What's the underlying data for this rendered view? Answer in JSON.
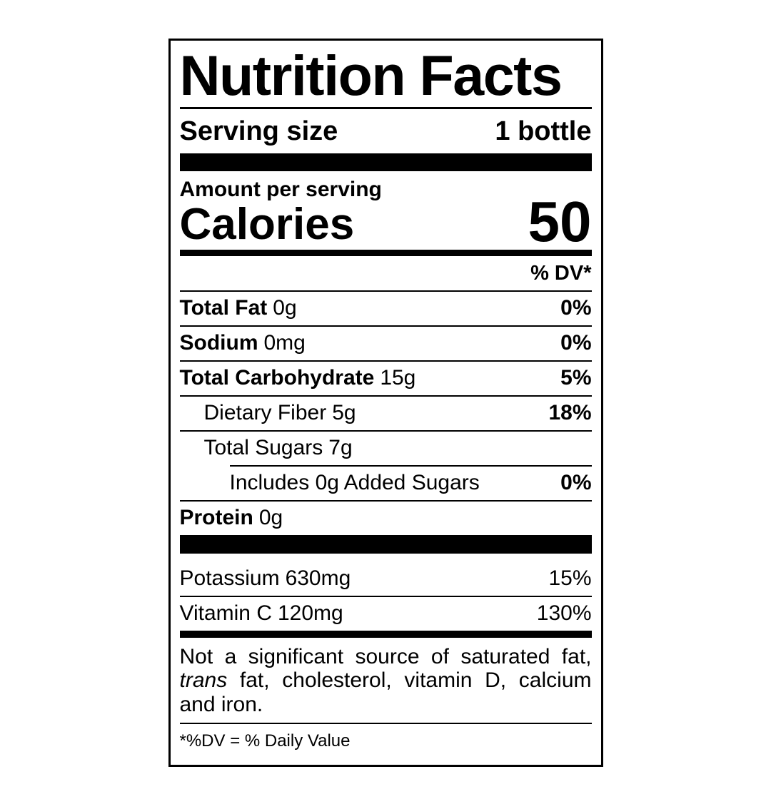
{
  "colors": {
    "ink": "#000000",
    "paper": "#ffffff"
  },
  "label": {
    "title": "Nutrition Facts",
    "serving": {
      "label": "Serving size",
      "value": "1 bottle"
    },
    "amount_per_serving": "Amount per serving",
    "calories": {
      "label": "Calories",
      "value": "50"
    },
    "dv_header": "% DV*",
    "nutrients": [
      {
        "name": "Total Fat",
        "amount": "0g",
        "dv": "0%"
      },
      {
        "name": "Sodium",
        "amount": "0mg",
        "dv": "0%"
      },
      {
        "name": "Total Carbohydrate",
        "amount": "15g",
        "dv": "5%"
      },
      {
        "name": "Dietary Fiber",
        "amount": "5g",
        "dv": "18%"
      },
      {
        "name": "Total Sugars",
        "amount": "7g",
        "dv": ""
      },
      {
        "name": "Includes 0g Added Sugars",
        "amount": "",
        "dv": "0%"
      },
      {
        "name": "Protein",
        "amount": "0g",
        "dv": ""
      }
    ],
    "vitamins": [
      {
        "name": "Potassium",
        "amount": "630mg",
        "dv": "15%"
      },
      {
        "name": "Vitamin C",
        "amount": "120mg",
        "dv": "130%"
      }
    ],
    "disclaimer": {
      "text_before": "Not a significant source of saturated fat,",
      "italic_word": "trans",
      "text_after": "fat, cholesterol, vitamin D, calcium and iron."
    },
    "footnote": "*%DV = % Daily Value"
  }
}
